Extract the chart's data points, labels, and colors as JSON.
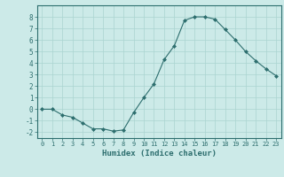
{
  "x": [
    0,
    1,
    2,
    3,
    4,
    5,
    6,
    7,
    8,
    9,
    10,
    11,
    12,
    13,
    14,
    15,
    16,
    17,
    18,
    19,
    20,
    21,
    22,
    23
  ],
  "y": [
    0.0,
    0.0,
    -0.5,
    -0.7,
    -1.2,
    -1.7,
    -1.7,
    -1.9,
    -1.8,
    -0.3,
    1.0,
    2.2,
    4.3,
    5.5,
    7.7,
    8.0,
    8.0,
    7.8,
    6.9,
    6.0,
    5.0,
    4.2,
    3.5,
    2.9
  ],
  "xlabel": "Humidex (Indice chaleur)",
  "ylim": [
    -2.5,
    9.0
  ],
  "xlim": [
    -0.5,
    23.5
  ],
  "line_color": "#2d6e6e",
  "marker": "D",
  "marker_size": 2,
  "bg_color": "#cceae8",
  "grid_color": "#aad4d0",
  "tick_color": "#2d6e6e",
  "label_color": "#2d6e6e",
  "yticks": [
    -2,
    -1,
    0,
    1,
    2,
    3,
    4,
    5,
    6,
    7,
    8
  ],
  "xticks": [
    0,
    1,
    2,
    3,
    4,
    5,
    6,
    7,
    8,
    9,
    10,
    11,
    12,
    13,
    14,
    15,
    16,
    17,
    18,
    19,
    20,
    21,
    22,
    23
  ]
}
